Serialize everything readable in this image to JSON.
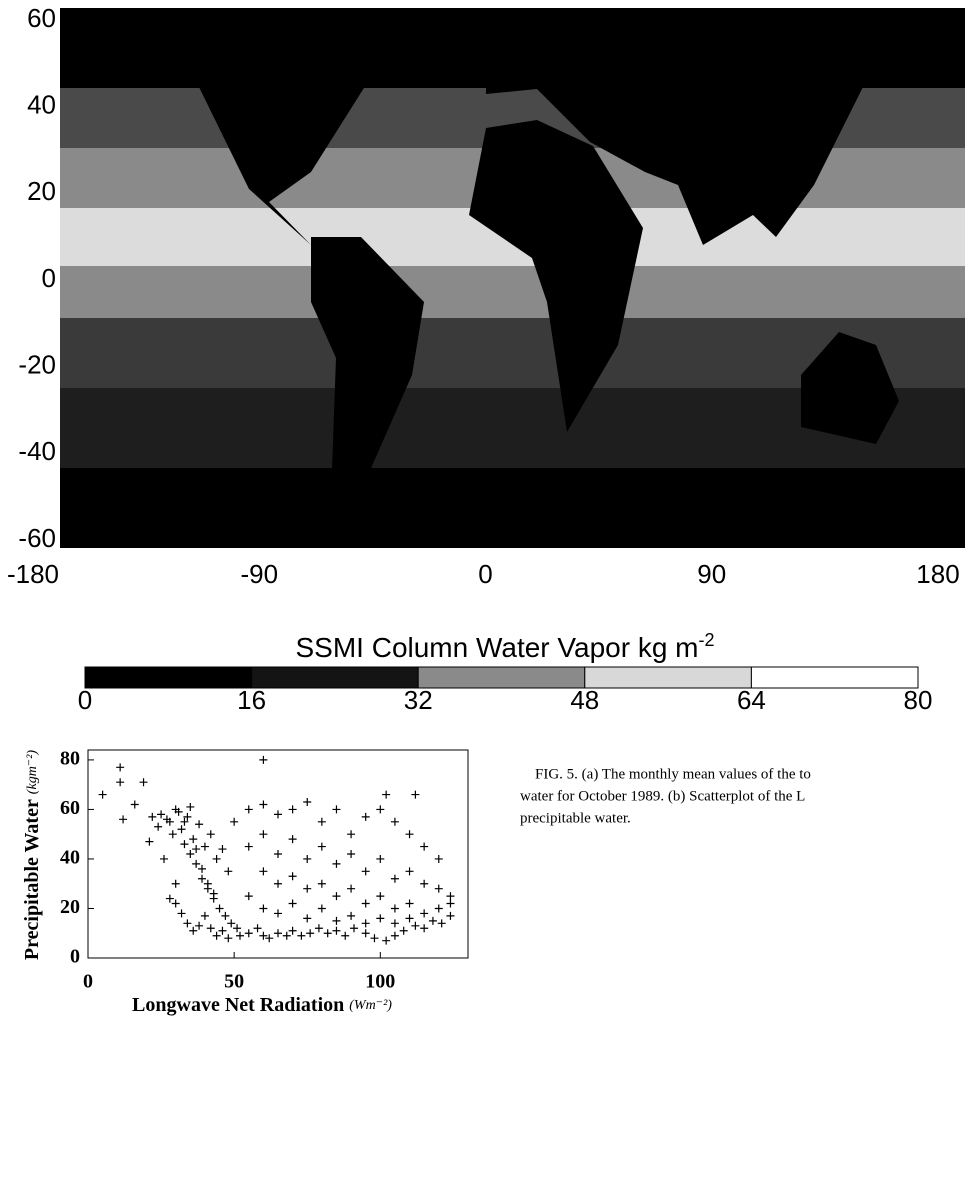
{
  "chart_data": [
    {
      "type": "map",
      "xlim": [
        -180,
        180
      ],
      "ylim": [
        -60,
        60
      ],
      "xticks": [
        -180,
        -90,
        0,
        90,
        180
      ],
      "yticks": [
        -60,
        -40,
        -20,
        0,
        20,
        40,
        60
      ]
    },
    {
      "type": "colorbar",
      "title": "SSMI Column Water Vapor  kg m",
      "title_superscript": "-2",
      "ticks": [
        0,
        16,
        32,
        48,
        64,
        80
      ],
      "colors": [
        "#000000",
        "#141414",
        "#8a8a8a",
        "#d8d8d8",
        "#ffffff"
      ]
    },
    {
      "type": "scatter",
      "xlabel": "Longwave Net Radiation",
      "xlabel_unit": "(Wm⁻²)",
      "ylabel": "Precipitable Water",
      "ylabel_unit": "(kgm⁻²)",
      "color": "#000000",
      "xlim": [
        0,
        130
      ],
      "ylim": [
        0,
        84
      ],
      "xticks": [
        0,
        50,
        100
      ],
      "yticks": [
        0,
        20,
        40,
        60,
        80
      ],
      "x": [
        22,
        25,
        28,
        30,
        32,
        34,
        36,
        38,
        40,
        42,
        44,
        46,
        48,
        35,
        33,
        37,
        39,
        41,
        43,
        45,
        47,
        49,
        51,
        30,
        32,
        34,
        36,
        38,
        40,
        42,
        44,
        46,
        48,
        52,
        55,
        58,
        60,
        62,
        65,
        68,
        70,
        73,
        76,
        79,
        82,
        85,
        88,
        91,
        95,
        98,
        102,
        105,
        108,
        112,
        115,
        118,
        121,
        124,
        50,
        55,
        60,
        65,
        70,
        75,
        80,
        85,
        90,
        95,
        100,
        105,
        110,
        115,
        120,
        55,
        60,
        65,
        70,
        75,
        80,
        85,
        90,
        95,
        100,
        105,
        110,
        115,
        120,
        124,
        60,
        65,
        70,
        75,
        80,
        85,
        90,
        95,
        100,
        105,
        110,
        115,
        120,
        124,
        55,
        60,
        65,
        70,
        75,
        80,
        85,
        90,
        95,
        100,
        105,
        110,
        5,
        11,
        11,
        12,
        16,
        19,
        60,
        102,
        112,
        21,
        28,
        30,
        26,
        24,
        27,
        31,
        29,
        33,
        35,
        37,
        39,
        41,
        43
      ],
      "values": [
        57,
        58,
        55,
        60,
        52,
        57,
        48,
        54,
        45,
        50,
        40,
        44,
        35,
        42,
        46,
        38,
        32,
        28,
        24,
        20,
        17,
        14,
        12,
        22,
        18,
        14,
        11,
        13,
        17,
        12,
        9,
        11,
        8,
        9,
        10,
        12,
        9,
        8,
        10,
        9,
        11,
        9,
        10,
        12,
        10,
        11,
        9,
        12,
        10,
        8,
        7,
        9,
        11,
        13,
        12,
        15,
        14,
        17,
        55,
        60,
        62,
        58,
        60,
        63,
        55,
        60,
        50,
        57,
        60,
        55,
        50,
        45,
        40,
        45,
        50,
        42,
        48,
        40,
        45,
        38,
        42,
        35,
        40,
        32,
        35,
        30,
        28,
        25,
        35,
        30,
        33,
        28,
        30,
        25,
        28,
        22,
        25,
        20,
        22,
        18,
        20,
        22,
        25,
        20,
        18,
        22,
        16,
        20,
        15,
        17,
        14,
        16,
        14,
        16,
        66,
        77,
        71,
        56,
        62,
        71,
        80,
        66,
        66,
        47,
        24,
        30,
        40,
        53,
        56,
        59,
        50,
        55,
        61,
        44,
        36,
        30,
        26
      ]
    }
  ],
  "caption": [
    "FIG. 5. (a) The monthly mean values of the to",
    "water for October 1989. (b) Scatterplot of the L",
    "precipitable water."
  ]
}
